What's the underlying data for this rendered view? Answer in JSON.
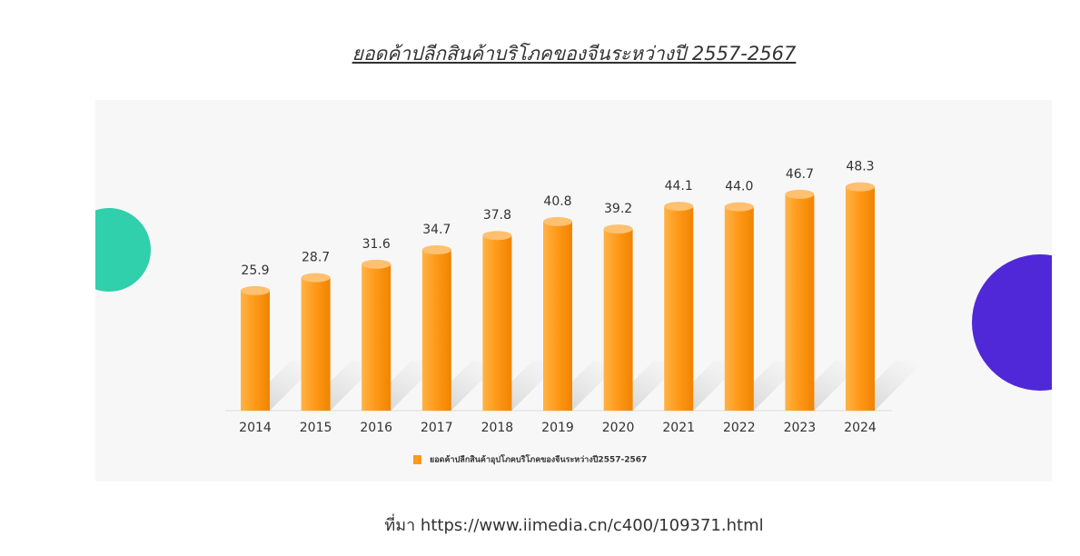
{
  "chart_data": {
    "type": "bar",
    "title": "ยอดค้าปลีกสินค้าบริโภคของจีนระหว่างปี 2557-2567",
    "categories": [
      "2014",
      "2015",
      "2016",
      "2017",
      "2018",
      "2019",
      "2020",
      "2021",
      "2022",
      "2023",
      "2024"
    ],
    "series": [
      {
        "name": "ยอดค้าปลีกสินค้าอุปโภคบริโภคของจีนระหว่างปี2557-2567",
        "color": "#ff9a1a",
        "values": [
          25.9,
          28.7,
          31.6,
          34.7,
          37.8,
          40.8,
          39.2,
          44.1,
          44.0,
          46.7,
          48.3
        ],
        "value_labels": [
          "25.9",
          "28.7",
          "31.6",
          "34.7",
          "37.8",
          "40.8",
          "39.2",
          "44.1",
          "44.0",
          "46.7",
          "48.3"
        ]
      }
    ],
    "source": "ที่มา https://www.iimedia.cn/c400/109371.html"
  }
}
